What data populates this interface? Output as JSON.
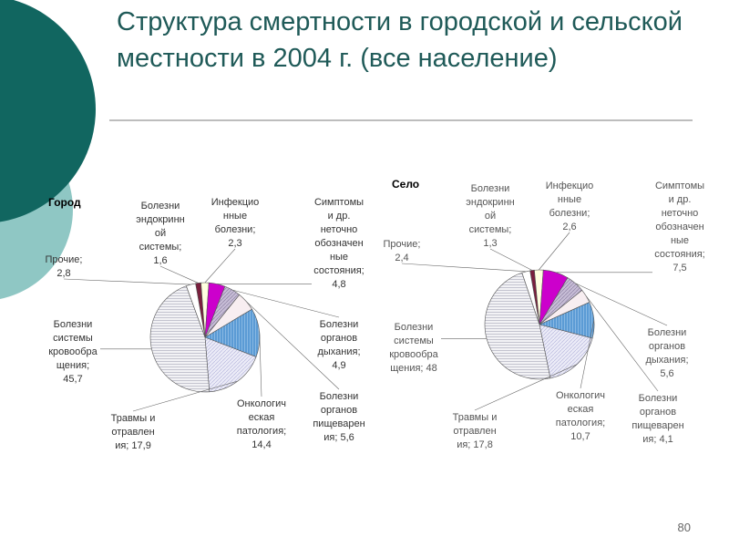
{
  "slide": {
    "title": "Структура смертности в городской и сельской местности в 2004 г. (все население)",
    "page_number": "80"
  },
  "colors": {
    "deco_dark": "#116660",
    "deco_light": "#8fc7c4",
    "title": "#1f5a58",
    "rule": "#bdbdbd"
  },
  "chart_data": [
    {
      "type": "pie",
      "title": "Город",
      "slices": [
        {
          "name": "Болезни эндокринной системы",
          "value": 1.6,
          "color": "#7a1f3d",
          "label_lines": [
            "Болезни",
            "эндокринн",
            "ой",
            "системы;",
            "1,6"
          ]
        },
        {
          "name": "Инфекционные болезни",
          "value": 2.3,
          "color": "#ffffe0",
          "label_lines": [
            "Инфекцио",
            "нные",
            "болезни;",
            "2,3"
          ]
        },
        {
          "name": "Симптомы и др. неточно обозначенные состояния",
          "value": 4.8,
          "color": "#cc00cc",
          "label_lines": [
            "Симптомы",
            "и др.",
            "неточно",
            "обозначен",
            "ные",
            "состояния;",
            "4,8"
          ]
        },
        {
          "name": "Болезни органов дыхания",
          "value": 4.9,
          "color": "#b3a6c7",
          "label_lines": [
            "Болезни",
            "органов",
            "дыхания;",
            "4,9"
          ]
        },
        {
          "name": "Болезни органов пищеварения",
          "value": 5.6,
          "color": "#f8eef1",
          "label_lines": [
            "Болезни",
            "органов",
            "пищеварен",
            "ия; 5,6"
          ]
        },
        {
          "name": "Онкологическая патология",
          "value": 14.4,
          "color": "#5b9bd5",
          "label_lines": [
            "Онкологич",
            "еская",
            "патология;",
            "14,4"
          ]
        },
        {
          "name": "Травмы и отравления",
          "value": 17.9,
          "color": "#eaeaf8",
          "label_lines": [
            "Травмы и",
            "отравлен",
            "ия; 17,9"
          ]
        },
        {
          "name": "Болезни системы кровообращения",
          "value": 45.7,
          "color": "#e3e3ea",
          "label_lines": [
            "Болезни",
            "системы",
            "кровообра",
            "щения;",
            "45,7"
          ]
        },
        {
          "name": "Прочие",
          "value": 2.8,
          "color": "#ffffff",
          "label_lines": [
            "Прочие;",
            "2,8"
          ]
        }
      ]
    },
    {
      "type": "pie",
      "title": "Село",
      "slices": [
        {
          "name": "Болезни эндокринной системы",
          "value": 1.3,
          "color": "#7a1f3d",
          "label_lines": [
            "Болезни",
            "эндокринн",
            "ой",
            "системы;",
            "1,3"
          ]
        },
        {
          "name": "Инфекционные болезни",
          "value": 2.6,
          "color": "#ffffe0",
          "label_lines": [
            "Инфекцио",
            "нные",
            "болезни;",
            "2,6"
          ]
        },
        {
          "name": "Симптомы и др. неточно обозначенные состояния",
          "value": 7.5,
          "color": "#cc00cc",
          "label_lines": [
            "Симптомы",
            "и др.",
            "неточно",
            "обозначен",
            "ные",
            "состояния;",
            "7,5"
          ]
        },
        {
          "name": "Болезни органов дыхания",
          "value": 5.6,
          "color": "#b3a6c7",
          "label_lines": [
            "Болезни",
            "органов",
            "дыхания;",
            "5,6"
          ]
        },
        {
          "name": "Болезни органов пищеварения",
          "value": 4.1,
          "color": "#f8eef1",
          "label_lines": [
            "Болезни",
            "органов",
            "пищеварен",
            "ия; 4,1"
          ]
        },
        {
          "name": "Онкологическая патология",
          "value": 10.7,
          "color": "#5b9bd5",
          "label_lines": [
            "Онкологич",
            "еская",
            "патология;",
            "10,7"
          ]
        },
        {
          "name": "Травмы и отравления",
          "value": 17.8,
          "color": "#eaeaf8",
          "label_lines": [
            "Травмы и",
            "отравлен",
            "ия; 17,8"
          ]
        },
        {
          "name": "Болезни системы кровообращения",
          "value": 48,
          "color": "#e3e3ea",
          "label_lines": [
            "Болезни",
            "системы",
            "кровообра",
            "щения; 48"
          ]
        },
        {
          "name": "Прочие",
          "value": 2.4,
          "color": "#ffffff",
          "label_lines": [
            "Прочие;",
            "2,4"
          ]
        }
      ]
    }
  ]
}
